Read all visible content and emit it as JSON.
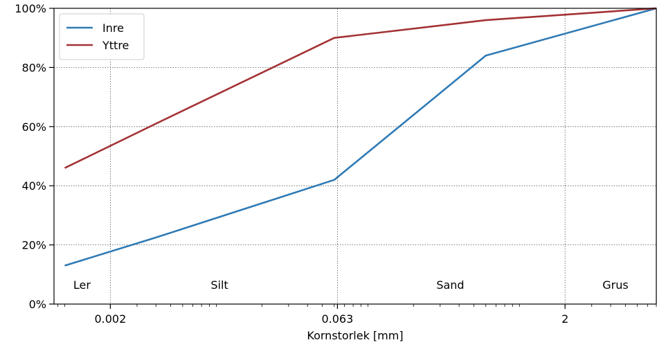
{
  "chart_data": {
    "type": "line",
    "xscale": "log",
    "xlabel": "Kornstorlek [mm]",
    "ylabel": "",
    "xlim": [
      0.00085,
      8
    ],
    "ylim": [
      0,
      100
    ],
    "x_ticks": [
      {
        "value": 0.002,
        "label": "0.002"
      },
      {
        "value": 0.063,
        "label": "0.063"
      },
      {
        "value": 2,
        "label": "2"
      }
    ],
    "y_ticks": [
      {
        "value": 0,
        "label": "0%"
      },
      {
        "value": 20,
        "label": "20%"
      },
      {
        "value": 40,
        "label": "40%"
      },
      {
        "value": 60,
        "label": "60%"
      },
      {
        "value": 80,
        "label": "80%"
      },
      {
        "value": 100,
        "label": "100%"
      }
    ],
    "grid": true,
    "legend_position": "top-left",
    "series": [
      {
        "name": "Inre",
        "color": "#2f7ab5",
        "points": [
          [
            0.001,
            13
          ],
          [
            0.004,
            22.5
          ],
          [
            0.06,
            42
          ],
          [
            0.6,
            84
          ],
          [
            8,
            100
          ]
        ]
      },
      {
        "name": "Yttre",
        "color": "#a33234",
        "points": [
          [
            0.001,
            46
          ],
          [
            0.004,
            61
          ],
          [
            0.06,
            90
          ],
          [
            0.6,
            96
          ],
          [
            8,
            100
          ]
        ]
      }
    ],
    "annotations": [
      {
        "text": "Ler",
        "x": 0.0013,
        "y": 6.5
      },
      {
        "text": "Silt",
        "x": 0.0105,
        "y": 6.5
      },
      {
        "text": "Sand",
        "x": 0.35,
        "y": 6.5
      },
      {
        "text": "Grus",
        "x": 4.3,
        "y": 6.5
      }
    ]
  }
}
